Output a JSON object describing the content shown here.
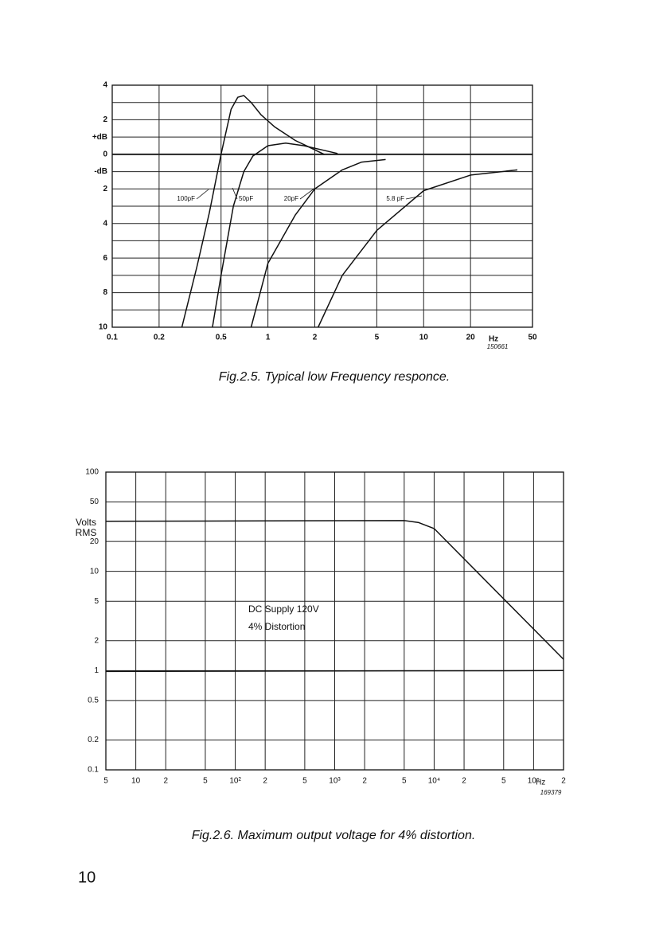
{
  "page_number": "10",
  "chart_data": [
    {
      "type": "line",
      "caption": "Fig.2.5. Typical low Frequency responce.",
      "figure_code": "150661",
      "x_unit_label": "Hz",
      "xlog": true,
      "xlim": [
        0.1,
        50
      ],
      "xticks": [
        0.1,
        0.2,
        0.5,
        1,
        2,
        5,
        10,
        20,
        50
      ],
      "ylim": [
        -10,
        4
      ],
      "yticks": [
        4,
        2,
        {
          "value": 1,
          "label": "+dB"
        },
        0,
        {
          "value": -1,
          "label": "-dB"
        },
        {
          "value": -2,
          "label": "2"
        },
        {
          "value": -4,
          "label": "4"
        },
        {
          "value": -6,
          "label": "6"
        },
        {
          "value": -8,
          "label": "8"
        },
        {
          "value": -10,
          "label": "10"
        }
      ],
      "y_minor_ticks": [
        3,
        -3,
        -5,
        -7,
        -9
      ],
      "grid": true,
      "color": "#111111",
      "series": [
        {
          "name": "100pF",
          "x": [
            0.28,
            0.35,
            0.42,
            0.5,
            0.58,
            0.64,
            0.7,
            0.78,
            0.9,
            1.1,
            1.5,
            2.3
          ],
          "values": [
            -10,
            -6.5,
            -3.4,
            0,
            2.6,
            3.3,
            3.4,
            3.0,
            2.3,
            1.6,
            0.8,
            0
          ]
        },
        {
          "name": "50pF",
          "x": [
            0.44,
            0.5,
            0.6,
            0.7,
            0.8,
            1,
            1.3,
            1.7,
            2.8
          ],
          "values": [
            -10,
            -7,
            -3,
            -1,
            -0.1,
            0.5,
            0.65,
            0.5,
            0.05
          ]
        },
        {
          "name": "20pF",
          "x": [
            0.78,
            1,
            1.5,
            2,
            3,
            4,
            5.7
          ],
          "values": [
            -10,
            -6.3,
            -3.5,
            -2,
            -0.9,
            -0.45,
            -0.3
          ]
        },
        {
          "name": "5.8 pF",
          "x": [
            2.1,
            3,
            5,
            10,
            20,
            40
          ],
          "values": [
            -10,
            -7,
            -4.4,
            -2.1,
            -1.2,
            -0.9
          ]
        }
      ]
    },
    {
      "type": "line",
      "caption": "Fig.2.6. Maximum output voltage for 4% distortion.",
      "figure_code": "169379",
      "x_unit_label": "Hz",
      "y_label_lines": [
        "Volts",
        "RMS"
      ],
      "annotations": [
        "DC Supply 120V",
        "4% Distortion"
      ],
      "xlog": true,
      "xlim": [
        5,
        200000
      ],
      "xticks": [
        5,
        10,
        {
          "value": 20,
          "label": "2"
        },
        {
          "value": 50,
          "label": "5"
        },
        {
          "value": 100,
          "label": "10²"
        },
        {
          "value": 200,
          "label": "2"
        },
        {
          "value": 500,
          "label": "5"
        },
        {
          "value": 1000,
          "label": "10³"
        },
        {
          "value": 2000,
          "label": "2"
        },
        {
          "value": 5000,
          "label": "5"
        },
        {
          "value": 10000,
          "label": "10⁴"
        },
        {
          "value": 20000,
          "label": "2"
        },
        {
          "value": 50000,
          "label": "5"
        },
        {
          "value": 100000,
          "label": "10⁵"
        },
        {
          "value": 200000,
          "label": "2"
        }
      ],
      "ylog": true,
      "ylim": [
        0.1,
        100
      ],
      "yticks": [
        100,
        50,
        20,
        10,
        5,
        2,
        1,
        0.5,
        0.2,
        0.1
      ],
      "grid": true,
      "color": "#111111",
      "series": [
        {
          "x": [
            5,
            5000,
            7000,
            10000,
            200000
          ],
          "values": [
            32,
            32.5,
            31,
            27,
            1.3
          ]
        },
        {
          "x": [
            5,
            200000
          ],
          "values": [
            0.98,
            1
          ]
        }
      ]
    }
  ]
}
